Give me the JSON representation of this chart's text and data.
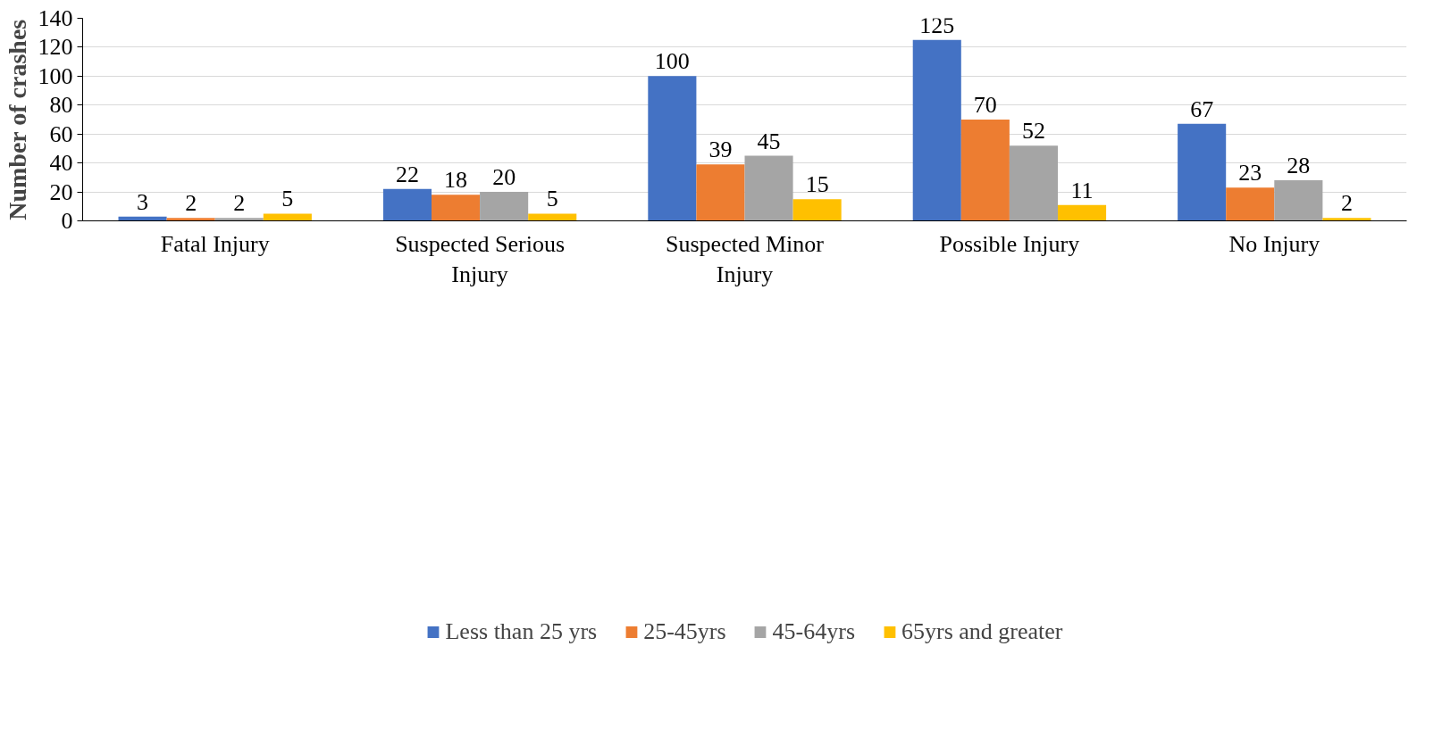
{
  "chart_data": {
    "type": "bar",
    "ylabel": "Number of crashes",
    "categories": [
      "Fatal Injury",
      "Suspected Serious Injury",
      "Suspected Minor Injury",
      "Possible Injury",
      "No Injury"
    ],
    "series": [
      {
        "name": "Less than 25 yrs",
        "color": "#4472c4",
        "values": [
          3,
          22,
          100,
          125,
          67
        ]
      },
      {
        "name": "25-45yrs",
        "color": "#ed7d31",
        "values": [
          2,
          18,
          39,
          70,
          23
        ]
      },
      {
        "name": "45-64yrs",
        "color": "#a5a5a5",
        "values": [
          2,
          20,
          45,
          52,
          28
        ]
      },
      {
        "name": "65yrs and greater",
        "color": "#ffc000",
        "values": [
          5,
          5,
          15,
          11,
          2
        ]
      }
    ],
    "ylim": [
      0,
      140
    ],
    "yticks": [
      0,
      20,
      40,
      60,
      80,
      100,
      120,
      140
    ],
    "grid": "y",
    "legend": "bottom",
    "data_labels": true
  }
}
